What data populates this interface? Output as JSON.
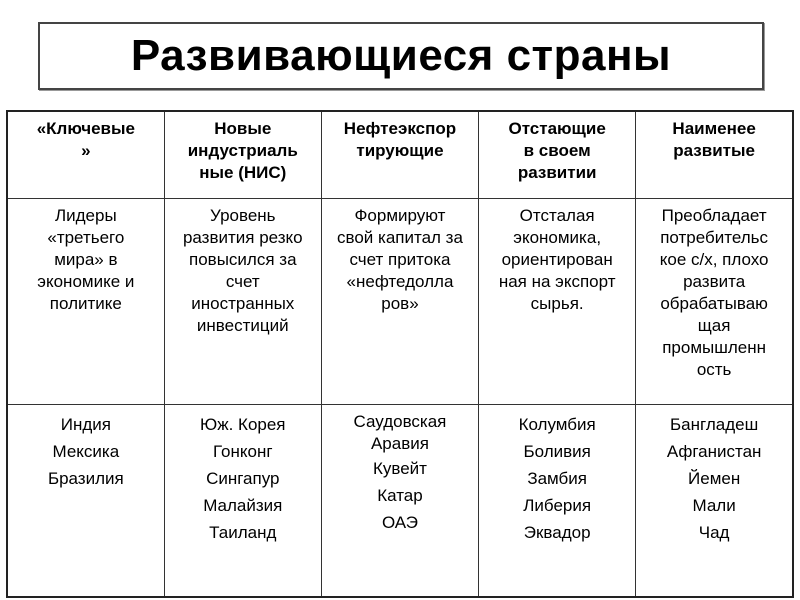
{
  "title": "Развивающиеся страны",
  "table": {
    "headers": [
      [
        "«Ключевые",
        "»"
      ],
      [
        "Новые",
        "индустриаль",
        "ные  (НИС)"
      ],
      [
        "Нефтеэкспор",
        "тирующие"
      ],
      [
        "Отстающие",
        "в своем",
        "развитии"
      ],
      [
        "Наименее",
        "развитые"
      ]
    ],
    "descriptions": [
      [
        "Лидеры",
        "«третьего",
        "мира» в",
        "экономике и",
        "политике"
      ],
      [
        "Уровень",
        "развития резко",
        "повысился за",
        "счет",
        "иностранных",
        "инвестиций"
      ],
      [
        "Формируют",
        "свой капитал за",
        "счет притока",
        "«нефтедолла",
        "ров»"
      ],
      [
        "Отсталая",
        "экономика,",
        "ориентирован",
        "ная на экспорт",
        "сырья."
      ],
      [
        "Преобладает",
        "потребительс",
        "кое с/х, плохо",
        "развита",
        "обрабатываю",
        "щая",
        "промышленн",
        "ость"
      ]
    ],
    "countries": [
      [
        "Индия",
        "Мексика",
        "Бразилия"
      ],
      [
        "Юж. Корея",
        "Гонконг",
        "Сингапур",
        "Малайзия",
        "Таиланд"
      ],
      [
        "Саудовская Аравия",
        "Кувейт",
        "Катар",
        "ОАЭ"
      ],
      [
        "Колумбия",
        "Боливия",
        "Замбия",
        "Либерия",
        "Эквадор"
      ],
      [
        "Бангладеш",
        "Афганистан",
        "Йемен",
        "Мали",
        "Чад"
      ]
    ]
  }
}
